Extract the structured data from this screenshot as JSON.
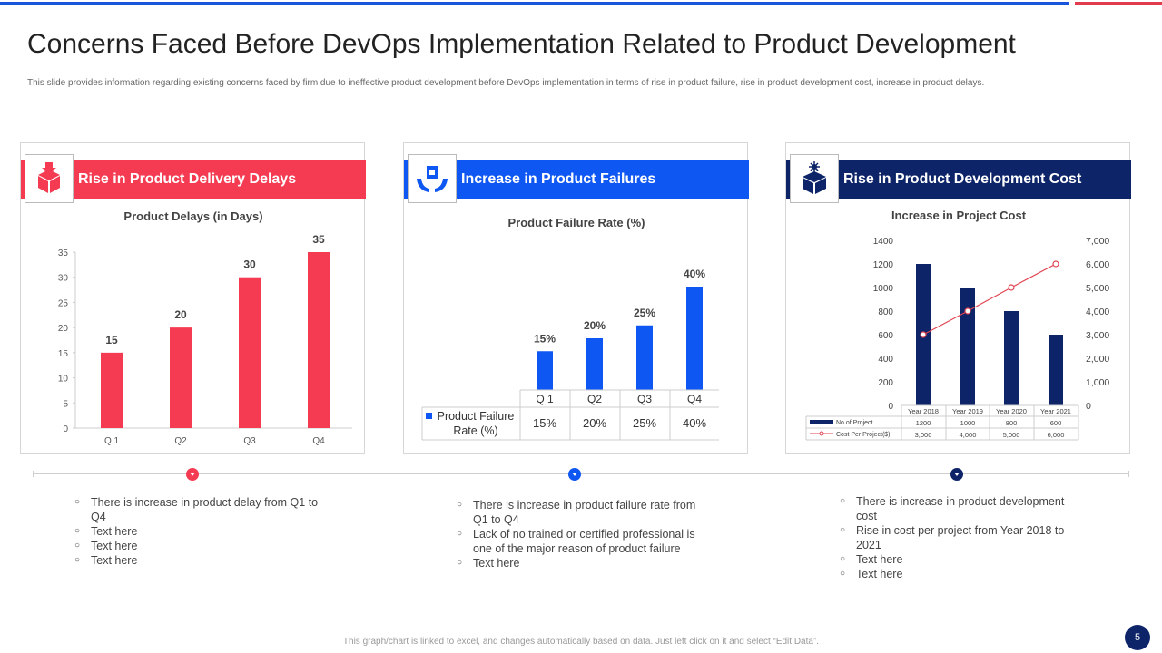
{
  "header": {
    "title": "Concerns Faced Before DevOps Implementation Related to Product Development",
    "subtitle": "This slide provides information regarding existing concerns faced by firm due to ineffective product development before DevOps implementation  in terms of rise in product failure, rise in  product development cost, increase in product delays."
  },
  "colors": {
    "red": "#f43b52",
    "blue": "#0f57f2",
    "navy": "#0d2468",
    "line_red": "#e04451"
  },
  "panels": [
    {
      "header": "Rise in Product Delivery Delays",
      "icon": "box-down-icon"
    },
    {
      "header": "Increase in Product Failures",
      "icon": "hands-box-icon"
    },
    {
      "header": "Rise in Product Development Cost",
      "icon": "box-gear-icon"
    }
  ],
  "chart_data": [
    {
      "type": "bar",
      "title": "Product Delays (in Days)",
      "categories": [
        "Q 1",
        "Q2",
        "Q3",
        "Q4"
      ],
      "values": [
        15,
        20,
        30,
        35
      ],
      "data_labels": [
        "15",
        "20",
        "30",
        "35"
      ],
      "y_ticks": [
        "0",
        "5",
        "10",
        "15",
        "20",
        "25",
        "30",
        "35"
      ],
      "ylim": [
        0,
        35
      ]
    },
    {
      "type": "bar",
      "title": "Product Failure Rate (%)",
      "categories": [
        "Q 1",
        "Q2",
        "Q3",
        "Q4"
      ],
      "values": [
        15,
        20,
        25,
        40
      ],
      "data_labels": [
        "15%",
        "20%",
        "25%",
        "40%"
      ],
      "table_label": "Product Failure Rate (%)",
      "table_values": [
        "15%",
        "20%",
        "25%",
        "40%"
      ],
      "ylim": [
        0,
        40
      ]
    },
    {
      "type": "bar",
      "title": "Increase in Project Cost",
      "categories": [
        "Year 2018",
        "Year 2019",
        "Year 2020",
        "Year 2021"
      ],
      "series": [
        {
          "name": "No.of Project",
          "type": "bar",
          "values": [
            1200,
            1000,
            800,
            600
          ],
          "labels": [
            "1200",
            "1000",
            "800",
            "600"
          ]
        },
        {
          "name": "Cost Per Project($)",
          "type": "line",
          "axis": "right",
          "values": [
            3000,
            4000,
            5000,
            6000
          ],
          "labels": [
            "3,000",
            "4,000",
            "5,000",
            "6,000"
          ]
        }
      ],
      "y_left_ticks": [
        "0",
        "200",
        "400",
        "600",
        "800",
        "1000",
        "1200",
        "1400"
      ],
      "y_right_ticks": [
        "0",
        "1,000",
        "2,000",
        "3,000",
        "4,000",
        "5,000",
        "6,000",
        "7,000"
      ],
      "ylim_left": [
        0,
        1400
      ],
      "ylim_right": [
        0,
        7000
      ]
    }
  ],
  "bullets": [
    [
      "There is increase in product delay from Q1 to Q4",
      "Text here",
      "Text here",
      "Text here"
    ],
    [
      "There is increase in product failure rate from Q1 to Q4",
      "Lack of no trained or certified professional is one of the major reason of product failure",
      "Text here"
    ],
    [
      "There is increase in product development  cost",
      "Rise in cost per project from Year 2018 to 2021",
      "Text here",
      "Text here"
    ]
  ],
  "footer": {
    "note": "This graph/chart is linked to excel, and changes automatically based on data. Just left click on it and select “Edit Data”.",
    "page": "5"
  }
}
